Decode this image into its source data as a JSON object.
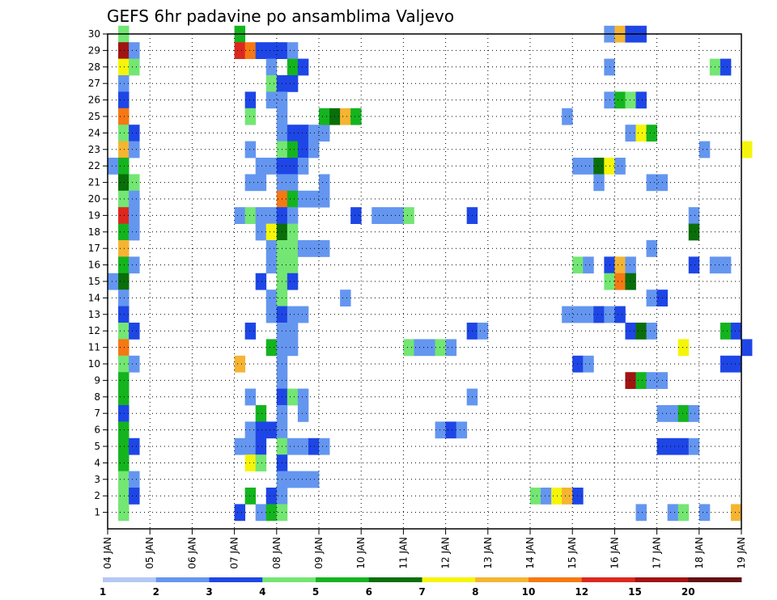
{
  "chart_data": {
    "type": "heatmap",
    "title": "GEFS 6hr padavine po ansamblima Valjevo",
    "xlabel": "",
    "ylabel": "",
    "x_tick_labels": [
      "04 JAN",
      "05 JAN",
      "06 JAN",
      "07 JAN",
      "08 JAN",
      "09 JAN",
      "10 JAN",
      "11 JAN",
      "12 JAN",
      "13 JAN",
      "14 JAN",
      "15 JAN",
      "16 JAN",
      "17 JAN",
      "18 JAN",
      "19 JAN"
    ],
    "x_range_days": [
      0,
      15
    ],
    "y_tick_labels": [
      "1",
      "2",
      "3",
      "4",
      "5",
      "6",
      "7",
      "8",
      "9",
      "10",
      "11",
      "12",
      "13",
      "14",
      "15",
      "16",
      "17",
      "18",
      "19",
      "20",
      "21",
      "22",
      "23",
      "24",
      "25",
      "26",
      "27",
      "28",
      "29",
      "30"
    ],
    "y_range": [
      0,
      30
    ],
    "grid": true,
    "time_step_hours": 6,
    "color_scale": {
      "bounds": [
        "1",
        "2",
        "3",
        "4",
        "5",
        "6",
        "7",
        "8",
        "10",
        "12",
        "15",
        "20"
      ],
      "colors": [
        "#b4c8f5",
        "#6496f0",
        "#1e46e6",
        "#73e673",
        "#14b41e",
        "#0a6e0a",
        "#f5f50a",
        "#f5b432",
        "#f57814",
        "#dc281e",
        "#a01414",
        "#641010"
      ]
    },
    "cells": [
      [
        0.25,
        30,
        3
      ],
      [
        0.25,
        29,
        10
      ],
      [
        0.5,
        29,
        1
      ],
      [
        0.25,
        28,
        6
      ],
      [
        0.5,
        28,
        3
      ],
      [
        0.25,
        27,
        1
      ],
      [
        0.25,
        26,
        2
      ],
      [
        0.25,
        25,
        8
      ],
      [
        0.25,
        24,
        3
      ],
      [
        0.5,
        24,
        2
      ],
      [
        0.25,
        23,
        7
      ],
      [
        0.5,
        23,
        1
      ],
      [
        0,
        22,
        1
      ],
      [
        0.25,
        22,
        4
      ],
      [
        0.25,
        21,
        5
      ],
      [
        0.5,
        21,
        3
      ],
      [
        0.25,
        20,
        3
      ],
      [
        0.5,
        20,
        1
      ],
      [
        0.25,
        19,
        9
      ],
      [
        0.5,
        19,
        1
      ],
      [
        0.25,
        18,
        4
      ],
      [
        0.5,
        18,
        1
      ],
      [
        0.25,
        17,
        7
      ],
      [
        0.25,
        16,
        4
      ],
      [
        0.5,
        16,
        1
      ],
      [
        0,
        15,
        1
      ],
      [
        0.25,
        15,
        5
      ],
      [
        0.25,
        14,
        1
      ],
      [
        0.25,
        13,
        2
      ],
      [
        0.25,
        12,
        3
      ],
      [
        0.5,
        12,
        2
      ],
      [
        0.25,
        11,
        8
      ],
      [
        0.25,
        10,
        3
      ],
      [
        0.5,
        10,
        1
      ],
      [
        0.25,
        9,
        4
      ],
      [
        0.25,
        8,
        4
      ],
      [
        0.25,
        7,
        2
      ],
      [
        0.25,
        6,
        4
      ],
      [
        0.25,
        5,
        4
      ],
      [
        0.5,
        5,
        2
      ],
      [
        0.25,
        4,
        4
      ],
      [
        0.25,
        3,
        3
      ],
      [
        0.5,
        3,
        1
      ],
      [
        0.25,
        2,
        3
      ],
      [
        0.5,
        2,
        2
      ],
      [
        0.25,
        1,
        3
      ],
      [
        3,
        30,
        4
      ],
      [
        3,
        29,
        9
      ],
      [
        3.25,
        29,
        8
      ],
      [
        3.5,
        29,
        2
      ],
      [
        3.75,
        29,
        2
      ],
      [
        4,
        29,
        2
      ],
      [
        4.25,
        29,
        1
      ],
      [
        3.75,
        28,
        1
      ],
      [
        4.25,
        28,
        4
      ],
      [
        4.5,
        28,
        2
      ],
      [
        3.75,
        27,
        3
      ],
      [
        4,
        27,
        2
      ],
      [
        4.25,
        27,
        2
      ],
      [
        3.25,
        26,
        2
      ],
      [
        3.75,
        26,
        1
      ],
      [
        4,
        26,
        1
      ],
      [
        3.25,
        25,
        3
      ],
      [
        4,
        25,
        1
      ],
      [
        4,
        24,
        1
      ],
      [
        4.25,
        24,
        2
      ],
      [
        4.5,
        24,
        2
      ],
      [
        4.75,
        24,
        1
      ],
      [
        5,
        24,
        1
      ],
      [
        3.25,
        23,
        1
      ],
      [
        4,
        23,
        3
      ],
      [
        4.25,
        23,
        4
      ],
      [
        4.5,
        23,
        2
      ],
      [
        4.75,
        23,
        1
      ],
      [
        3.5,
        22,
        1
      ],
      [
        3.75,
        22,
        1
      ],
      [
        4,
        22,
        2
      ],
      [
        4.25,
        22,
        2
      ],
      [
        4.5,
        22,
        1
      ],
      [
        3.25,
        21,
        1
      ],
      [
        3.5,
        21,
        1
      ],
      [
        4,
        21,
        1
      ],
      [
        4.25,
        21,
        1
      ],
      [
        5,
        21,
        1
      ],
      [
        4,
        20,
        8
      ],
      [
        4.25,
        20,
        4
      ],
      [
        4.5,
        20,
        1
      ],
      [
        4.75,
        20,
        1
      ],
      [
        5,
        20,
        1
      ],
      [
        3,
        19,
        1
      ],
      [
        3.25,
        19,
        3
      ],
      [
        3.5,
        19,
        1
      ],
      [
        3.75,
        19,
        1
      ],
      [
        4,
        19,
        2
      ],
      [
        4.25,
        19,
        1
      ],
      [
        3.5,
        18,
        1
      ],
      [
        3.75,
        18,
        6
      ],
      [
        4,
        18,
        5
      ],
      [
        4.25,
        18,
        3
      ],
      [
        3.75,
        17,
        1
      ],
      [
        4,
        17,
        3
      ],
      [
        4.25,
        17,
        3
      ],
      [
        4.5,
        17,
        1
      ],
      [
        4.75,
        17,
        1
      ],
      [
        5,
        17,
        1
      ],
      [
        3.75,
        16,
        1
      ],
      [
        4,
        16,
        3
      ],
      [
        4.25,
        16,
        3
      ],
      [
        3.5,
        15,
        2
      ],
      [
        4,
        15,
        3
      ],
      [
        4.25,
        15,
        2
      ],
      [
        3.75,
        14,
        1
      ],
      [
        4,
        14,
        3
      ],
      [
        3.75,
        13,
        1
      ],
      [
        4,
        13,
        2
      ],
      [
        4.25,
        13,
        1
      ],
      [
        4.5,
        13,
        1
      ],
      [
        3.25,
        12,
        2
      ],
      [
        4,
        12,
        1
      ],
      [
        4.25,
        12,
        1
      ],
      [
        3.75,
        11,
        4
      ],
      [
        4,
        11,
        1
      ],
      [
        4.25,
        11,
        1
      ],
      [
        3,
        10,
        7
      ],
      [
        4,
        10,
        1
      ],
      [
        4,
        9,
        1
      ],
      [
        3.25,
        8,
        1
      ],
      [
        4,
        8,
        2
      ],
      [
        4.25,
        8,
        3
      ],
      [
        4.5,
        8,
        1
      ],
      [
        3.5,
        7,
        4
      ],
      [
        4,
        7,
        1
      ],
      [
        4.5,
        7,
        1
      ],
      [
        3.25,
        6,
        1
      ],
      [
        3.5,
        6,
        2
      ],
      [
        3.75,
        6,
        2
      ],
      [
        4,
        6,
        1
      ],
      [
        3,
        5,
        1
      ],
      [
        3.25,
        5,
        1
      ],
      [
        3.5,
        5,
        2
      ],
      [
        4,
        5,
        3
      ],
      [
        4.25,
        5,
        1
      ],
      [
        4.5,
        5,
        1
      ],
      [
        4.75,
        5,
        2
      ],
      [
        5,
        5,
        1
      ],
      [
        3.25,
        4,
        6
      ],
      [
        3.5,
        4,
        3
      ],
      [
        4,
        4,
        2
      ],
      [
        4,
        3,
        1
      ],
      [
        4.25,
        3,
        1
      ],
      [
        4.5,
        3,
        1
      ],
      [
        4.75,
        3,
        1
      ],
      [
        3.25,
        2,
        4
      ],
      [
        3.75,
        2,
        2
      ],
      [
        4,
        2,
        1
      ],
      [
        3,
        1,
        2
      ],
      [
        3.5,
        1,
        1
      ],
      [
        3.75,
        1,
        4
      ],
      [
        4,
        1,
        3
      ],
      [
        5,
        25,
        4
      ],
      [
        5.25,
        25,
        5
      ],
      [
        5.5,
        25,
        7
      ],
      [
        5.75,
        25,
        4
      ],
      [
        5.5,
        14,
        1
      ],
      [
        5.75,
        19,
        2
      ],
      [
        6.25,
        19,
        1
      ],
      [
        6.5,
        19,
        1
      ],
      [
        6.75,
        19,
        1
      ],
      [
        7,
        19,
        3
      ],
      [
        7,
        11,
        3
      ],
      [
        7.25,
        11,
        1
      ],
      [
        7.5,
        11,
        1
      ],
      [
        7.75,
        11,
        3
      ],
      [
        8,
        11,
        1
      ],
      [
        7.75,
        6,
        1
      ],
      [
        8,
        6,
        2
      ],
      [
        8.25,
        6,
        1
      ],
      [
        8.5,
        19,
        2
      ],
      [
        8.5,
        12,
        2
      ],
      [
        8.75,
        12,
        1
      ],
      [
        8.5,
        8,
        1
      ],
      [
        10.75,
        25,
        1
      ],
      [
        11,
        22,
        1
      ],
      [
        11.25,
        22,
        1
      ],
      [
        11.5,
        22,
        5
      ],
      [
        11.75,
        22,
        6
      ],
      [
        12,
        22,
        1
      ],
      [
        11.5,
        21,
        1
      ],
      [
        11,
        16,
        3
      ],
      [
        11.25,
        16,
        1
      ],
      [
        11.75,
        16,
        2
      ],
      [
        12,
        16,
        7
      ],
      [
        12.25,
        16,
        1
      ],
      [
        11.75,
        15,
        3
      ],
      [
        12,
        15,
        8
      ],
      [
        12.25,
        15,
        5
      ],
      [
        10.75,
        13,
        1
      ],
      [
        11,
        13,
        1
      ],
      [
        11.25,
        13,
        1
      ],
      [
        11.5,
        13,
        2
      ],
      [
        11.75,
        13,
        1
      ],
      [
        12,
        13,
        2
      ],
      [
        11,
        10,
        2
      ],
      [
        11.25,
        10,
        1
      ],
      [
        11.75,
        30,
        1
      ],
      [
        12,
        30,
        7
      ],
      [
        12.25,
        30,
        2
      ],
      [
        12.5,
        30,
        2
      ],
      [
        11.75,
        28,
        1
      ],
      [
        11.75,
        26,
        1
      ],
      [
        12,
        26,
        4
      ],
      [
        12.25,
        26,
        3
      ],
      [
        12.5,
        26,
        2
      ],
      [
        12.25,
        24,
        1
      ],
      [
        12.5,
        24,
        6
      ],
      [
        12.75,
        24,
        4
      ],
      [
        12.75,
        17,
        1
      ],
      [
        12.75,
        14,
        1
      ],
      [
        13,
        14,
        2
      ],
      [
        12.25,
        12,
        2
      ],
      [
        12.5,
        12,
        5
      ],
      [
        12.75,
        12,
        1
      ],
      [
        12.25,
        9,
        10
      ],
      [
        12.5,
        9,
        4
      ],
      [
        12.75,
        9,
        1
      ],
      [
        13,
        9,
        1
      ],
      [
        13,
        7,
        1
      ],
      [
        13.25,
        7,
        1
      ],
      [
        13.5,
        7,
        4
      ],
      [
        13.75,
        7,
        1
      ],
      [
        13,
        5,
        2
      ],
      [
        13.25,
        5,
        2
      ],
      [
        13.5,
        5,
        2
      ],
      [
        13.75,
        5,
        1
      ],
      [
        12.5,
        1,
        1
      ],
      [
        13.25,
        1,
        1
      ],
      [
        13.5,
        1,
        3
      ],
      [
        14,
        1,
        1
      ],
      [
        14.75,
        1,
        7
      ],
      [
        12.75,
        21,
        1
      ],
      [
        13,
        21,
        1
      ],
      [
        14,
        23,
        1
      ],
      [
        15,
        23,
        6
      ],
      [
        14.25,
        28,
        3
      ],
      [
        14.5,
        28,
        2
      ],
      [
        13.75,
        19,
        1
      ],
      [
        13.75,
        18,
        5
      ],
      [
        13.5,
        11,
        6
      ],
      [
        13.75,
        16,
        2
      ],
      [
        14.25,
        16,
        1
      ],
      [
        14.5,
        16,
        1
      ],
      [
        14.5,
        12,
        4
      ],
      [
        14.75,
        12,
        2
      ],
      [
        15,
        11,
        2
      ],
      [
        14.5,
        10,
        2
      ],
      [
        14.75,
        10,
        2
      ],
      [
        10,
        2,
        3
      ],
      [
        10.25,
        2,
        1
      ],
      [
        10.5,
        2,
        6
      ],
      [
        10.75,
        2,
        7
      ],
      [
        11,
        2,
        2
      ]
    ]
  }
}
